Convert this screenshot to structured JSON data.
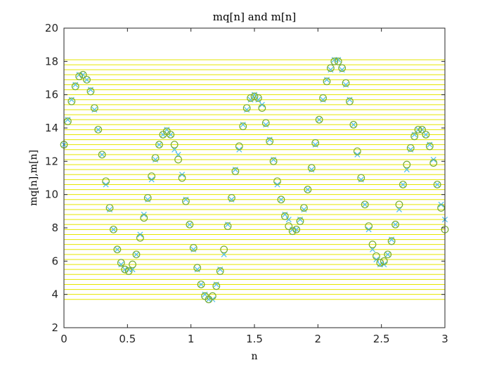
{
  "chart_data": {
    "type": "scatter",
    "title": "mq[n] and m[n]",
    "xlabel": "n",
    "ylabel": "mq[n],m[n]",
    "xlim": [
      0,
      3
    ],
    "ylim": [
      2,
      20
    ],
    "xticks": [
      0,
      0.5,
      1,
      1.5,
      2,
      2.5,
      3
    ],
    "xtick_labels": [
      "0",
      "0.5",
      "1",
      "1.5",
      "2",
      "2.5",
      "3"
    ],
    "yticks": [
      2,
      4,
      6,
      8,
      10,
      12,
      14,
      16,
      18,
      20
    ],
    "ytick_labels": [
      "2",
      "4",
      "6",
      "8",
      "10",
      "12",
      "14",
      "16",
      "18",
      "20"
    ],
    "grid": false,
    "quantization_levels": {
      "start": 3.7,
      "end": 18.1,
      "step": 0.3,
      "color": "#e6e600"
    },
    "series": [
      {
        "marker": "x",
        "color": "#4dbeee",
        "x": [
          0,
          0.03,
          0.06,
          0.09,
          0.12,
          0.15,
          0.18,
          0.21,
          0.24,
          0.27,
          0.3,
          0.33,
          0.36,
          0.39,
          0.42,
          0.45,
          0.48,
          0.51,
          0.54,
          0.57,
          0.6,
          0.63,
          0.66,
          0.69,
          0.72,
          0.75,
          0.78,
          0.81,
          0.84,
          0.87,
          0.9,
          0.93,
          0.96,
          0.99,
          1.02,
          1.05,
          1.08,
          1.11,
          1.14,
          1.17,
          1.2,
          1.23,
          1.26,
          1.29,
          1.32,
          1.35,
          1.38,
          1.41,
          1.44,
          1.47,
          1.5,
          1.53,
          1.56,
          1.59,
          1.62,
          1.65,
          1.68,
          1.71,
          1.74,
          1.77,
          1.8,
          1.83,
          1.86,
          1.89,
          1.92,
          1.95,
          1.98,
          2.01,
          2.04,
          2.07,
          2.1,
          2.13,
          2.16,
          2.19,
          2.22,
          2.25,
          2.28,
          2.31,
          2.34,
          2.37,
          2.4,
          2.43,
          2.46,
          2.49,
          2.52,
          2.55,
          2.58,
          2.61,
          2.64,
          2.67,
          2.7,
          2.73,
          2.76,
          2.79,
          2.82,
          2.85,
          2.88,
          2.91,
          2.94,
          2.97,
          3.0
        ],
        "y": [
          13.0,
          14.5,
          15.7,
          16.6,
          17.2,
          17.2,
          16.9,
          16.3,
          15.1,
          13.9,
          12.4,
          10.6,
          9.1,
          7.9,
          6.7,
          5.8,
          5.5,
          5.5,
          5.5,
          6.4,
          7.6,
          8.8,
          9.7,
          10.9,
          12.1,
          13.0,
          13.6,
          13.9,
          13.6,
          12.7,
          12.4,
          11.2,
          9.7,
          8.2,
          6.7,
          5.5,
          4.6,
          4.0,
          3.7,
          3.7,
          4.6,
          5.5,
          6.4,
          8.2,
          9.7,
          11.5,
          12.7,
          14.2,
          15.1,
          15.7,
          16.0,
          15.7,
          15.4,
          14.2,
          13.3,
          12.1,
          10.6,
          9.7,
          8.8,
          8.5,
          7.9,
          7.9,
          8.5,
          9.1,
          10.3,
          11.5,
          13.0,
          14.5,
          15.7,
          16.9,
          17.5,
          18.1,
          18.1,
          17.5,
          16.6,
          15.7,
          14.2,
          12.4,
          10.9,
          9.4,
          7.9,
          6.7,
          6.1,
          5.8,
          5.8,
          6.4,
          7.3,
          8.2,
          9.1,
          10.6,
          11.5,
          12.7,
          13.6,
          13.9,
          13.9,
          13.6,
          13.0,
          12.1,
          10.6,
          9.4,
          8.5
        ]
      },
      {
        "marker": "o",
        "color": "#77ac30",
        "x": [
          0,
          0.03,
          0.06,
          0.09,
          0.12,
          0.15,
          0.18,
          0.21,
          0.24,
          0.27,
          0.3,
          0.33,
          0.36,
          0.39,
          0.42,
          0.45,
          0.48,
          0.51,
          0.54,
          0.57,
          0.6,
          0.63,
          0.66,
          0.69,
          0.72,
          0.75,
          0.78,
          0.81,
          0.84,
          0.87,
          0.9,
          0.93,
          0.96,
          0.99,
          1.02,
          1.05,
          1.08,
          1.11,
          1.14,
          1.17,
          1.2,
          1.23,
          1.26,
          1.29,
          1.32,
          1.35,
          1.38,
          1.41,
          1.44,
          1.47,
          1.5,
          1.53,
          1.56,
          1.59,
          1.62,
          1.65,
          1.68,
          1.71,
          1.74,
          1.77,
          1.8,
          1.83,
          1.86,
          1.89,
          1.92,
          1.95,
          1.98,
          2.01,
          2.04,
          2.07,
          2.1,
          2.13,
          2.16,
          2.19,
          2.22,
          2.25,
          2.28,
          2.31,
          2.34,
          2.37,
          2.4,
          2.43,
          2.46,
          2.49,
          2.52,
          2.55,
          2.58,
          2.61,
          2.64,
          2.67,
          2.7,
          2.73,
          2.76,
          2.79,
          2.82,
          2.85,
          2.88,
          2.91,
          2.94,
          2.97,
          3.0
        ],
        "y": [
          13.0,
          14.4,
          15.6,
          16.5,
          17.1,
          17.2,
          16.9,
          16.2,
          15.2,
          13.9,
          12.4,
          10.8,
          9.2,
          7.9,
          6.7,
          5.9,
          5.5,
          5.4,
          5.8,
          6.4,
          7.4,
          8.6,
          9.8,
          11.1,
          12.2,
          13.0,
          13.6,
          13.8,
          13.6,
          13.0,
          12.1,
          11.0,
          9.6,
          8.2,
          6.8,
          5.6,
          4.6,
          3.9,
          3.7,
          3.9,
          4.5,
          5.4,
          6.7,
          8.1,
          9.8,
          11.4,
          12.9,
          14.1,
          15.2,
          15.8,
          15.9,
          15.8,
          15.2,
          14.3,
          13.2,
          12.0,
          10.8,
          9.7,
          8.7,
          8.1,
          7.8,
          7.9,
          8.4,
          9.2,
          10.3,
          11.6,
          13.1,
          14.5,
          15.8,
          16.8,
          17.6,
          18.0,
          18.0,
          17.6,
          16.7,
          15.6,
          14.2,
          12.6,
          11.0,
          9.4,
          8.1,
          7.0,
          6.3,
          5.9,
          6.0,
          6.4,
          7.2,
          8.2,
          9.4,
          10.6,
          11.8,
          12.8,
          13.5,
          13.9,
          13.9,
          13.6,
          12.9,
          11.9,
          10.6,
          9.2,
          7.9
        ]
      }
    ]
  }
}
